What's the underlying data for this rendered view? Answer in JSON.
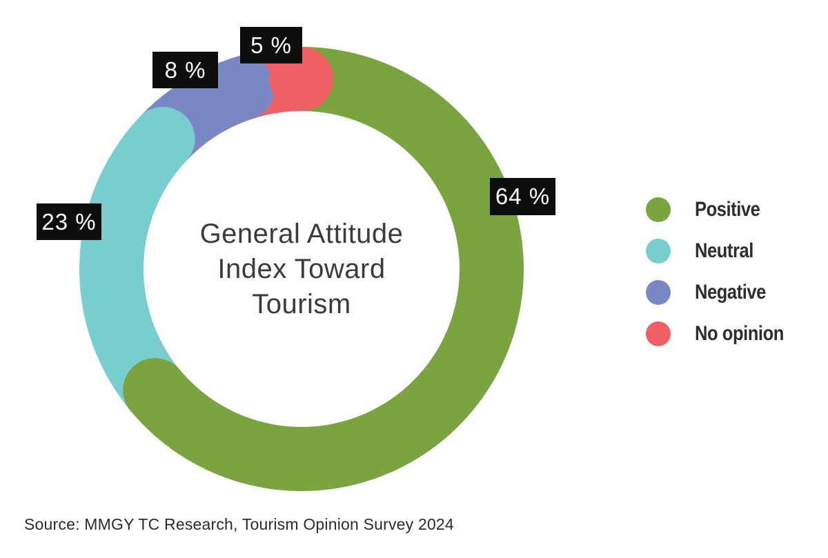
{
  "page": {
    "background": "#ffffff"
  },
  "chart_data": {
    "type": "pie",
    "variant": "donut",
    "title": "General Attitude Index Toward Tourism",
    "title_lines": [
      "General Attitude",
      "Index Toward",
      "Tourism"
    ],
    "legend_position": "right",
    "start_angle_deg": 0,
    "direction": "clockwise",
    "segments": [
      {
        "label": "Positive",
        "value": 64,
        "display": "64 %",
        "color": "#7aa440"
      },
      {
        "label": "Neutral",
        "value": 23,
        "display": "23 %",
        "color": "#79cdcf"
      },
      {
        "label": "Negative",
        "value": 8,
        "display": "8 %",
        "color": "#7987c4"
      },
      {
        "label": "No opinion",
        "value": 5,
        "display": "5 %",
        "color": "#f05f63"
      }
    ],
    "callout_style": {
      "background": "#0d0d0d",
      "text_color": "#ffffff"
    }
  },
  "source": {
    "text": "Source: MMGY TC Research, Tourism Opinion Survey 2024"
  }
}
